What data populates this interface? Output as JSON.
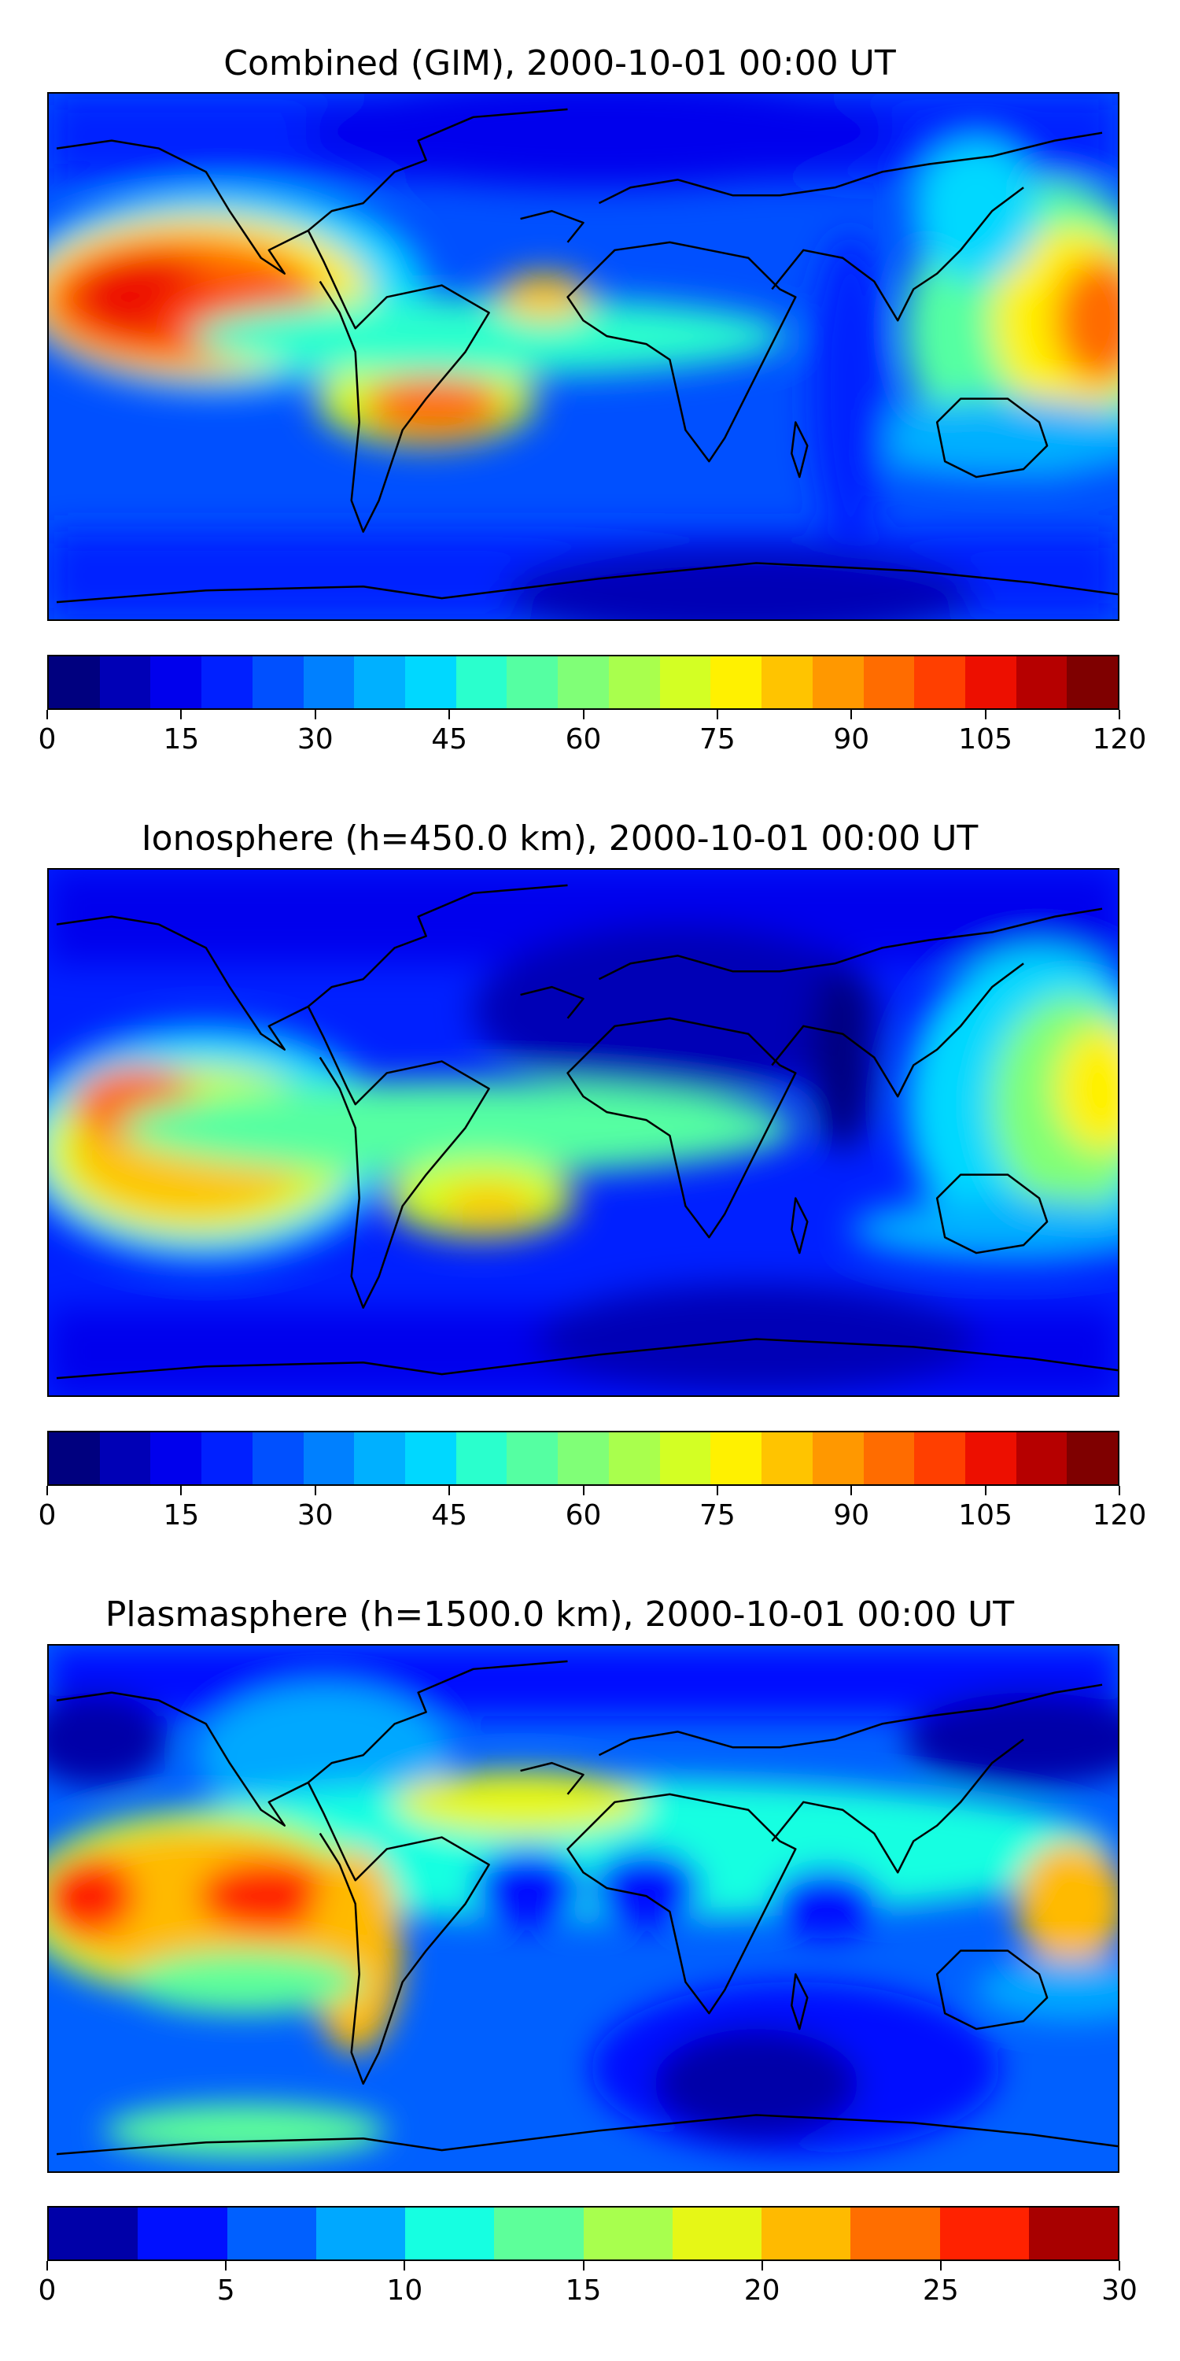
{
  "panels": [
    {
      "title": "Combined (GIM), 2000-10-01 00:00 UT",
      "colorbar": {
        "min": 0,
        "max": 120,
        "ticks": [
          "0",
          "15",
          "30",
          "45",
          "60",
          "75",
          "90",
          "105",
          "120"
        ],
        "colors": [
          "#00007f",
          "#0000b6",
          "#0000ed",
          "#0020ff",
          "#0050ff",
          "#0080ff",
          "#00b0ff",
          "#00d8ff",
          "#2affcd",
          "#55ffa2",
          "#80ff77",
          "#a9ff4d",
          "#d3ff24",
          "#fff100",
          "#ffc400",
          "#ff9800",
          "#ff6c00",
          "#ff3f00",
          "#ed0f00",
          "#b60000",
          "#7f0000"
        ]
      }
    },
    {
      "title": "Ionosphere  (h=450.0 km), 2000-10-01 00:00 UT",
      "colorbar": {
        "min": 0,
        "max": 120,
        "ticks": [
          "0",
          "15",
          "30",
          "45",
          "60",
          "75",
          "90",
          "105",
          "120"
        ],
        "colors": [
          "#00007f",
          "#0000b6",
          "#0000ed",
          "#0020ff",
          "#0050ff",
          "#0080ff",
          "#00b0ff",
          "#00d8ff",
          "#2affcd",
          "#55ffa2",
          "#80ff77",
          "#a9ff4d",
          "#d3ff24",
          "#fff100",
          "#ffc400",
          "#ff9800",
          "#ff6c00",
          "#ff3f00",
          "#ed0f00",
          "#b60000",
          "#7f0000"
        ]
      }
    },
    {
      "title": "Plasmasphere (h=1500.0 km), 2000-10-01 00:00 UT",
      "colorbar": {
        "min": 0,
        "max": 30,
        "ticks": [
          "0",
          "5",
          "10",
          "15",
          "20",
          "25",
          "30"
        ],
        "colors": [
          "#0000a8",
          "#0010ff",
          "#0060ff",
          "#00a8ff",
          "#16ffe1",
          "#5dff9a",
          "#a8ff4e",
          "#e6f716",
          "#ffba00",
          "#ff6e00",
          "#ff2200",
          "#a80000"
        ]
      }
    }
  ]
}
